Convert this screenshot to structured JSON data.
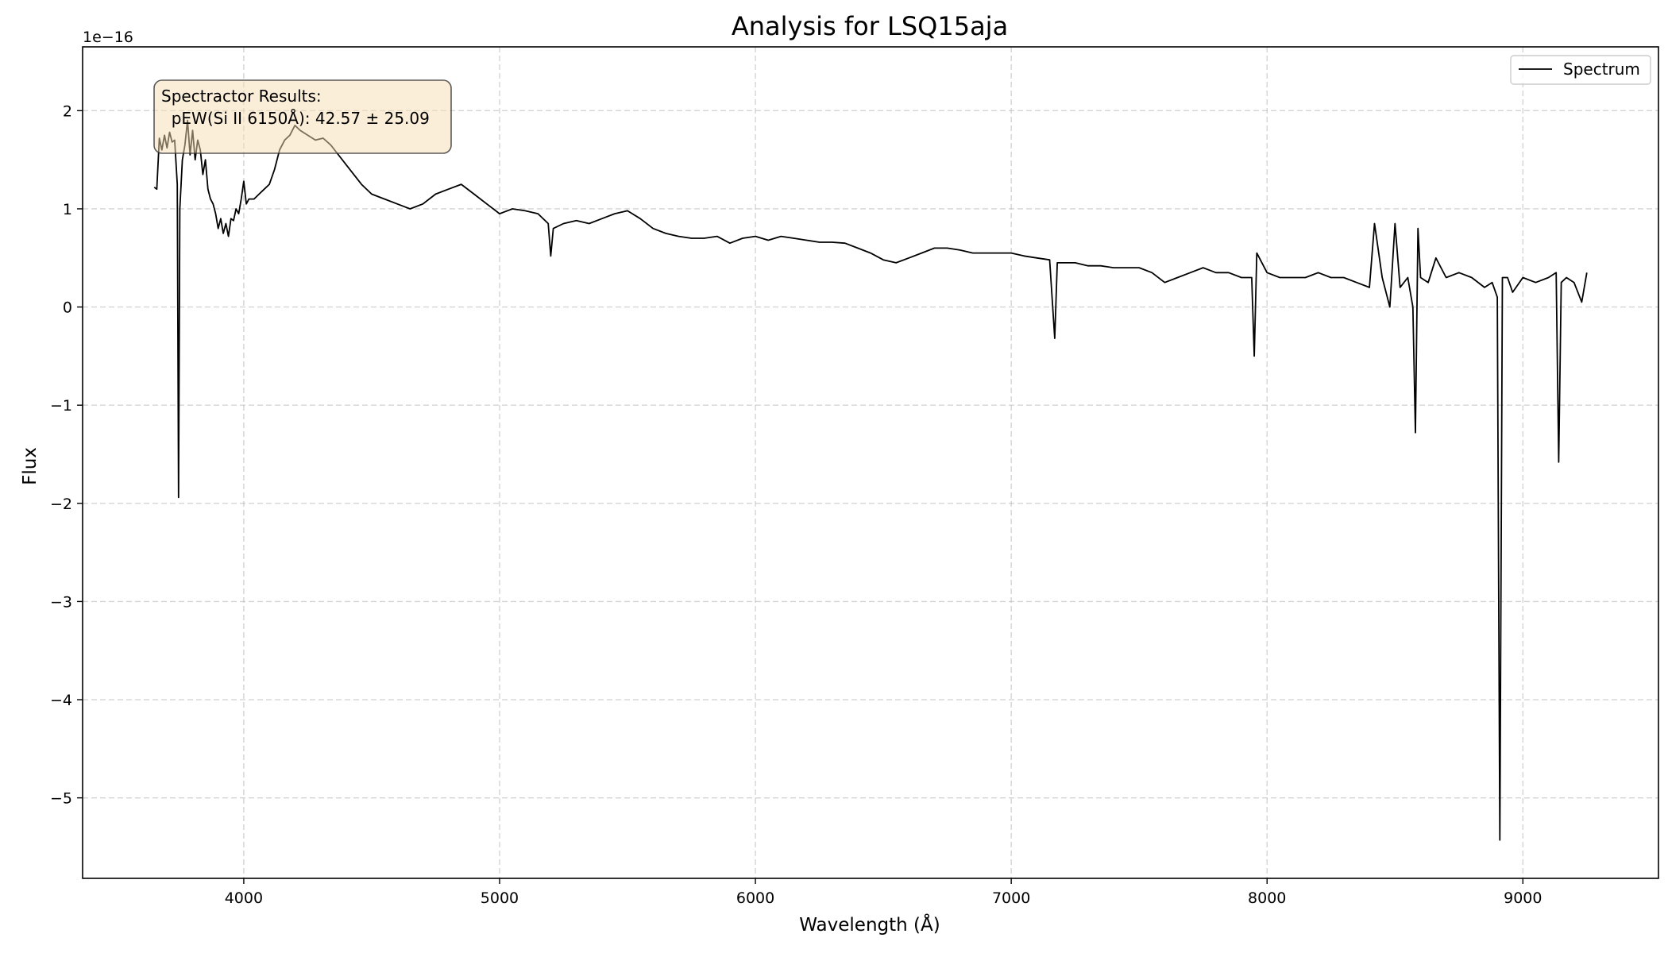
{
  "chart_data": {
    "type": "line",
    "title": "Analysis for LSQ15aja",
    "xlabel": "Wavelength (Å)",
    "ylabel": "Flux",
    "y_offset_label": "1e−16",
    "xlim": [
      3370,
      9530
    ],
    "ylim": [
      -5.82,
      2.65
    ],
    "xticks": [
      4000,
      5000,
      6000,
      7000,
      8000,
      9000
    ],
    "yticks": [
      -5,
      -4,
      -3,
      -2,
      -1,
      0,
      1,
      2
    ],
    "grid": true,
    "legend": {
      "position": "top-right",
      "entries": [
        "Spectrum"
      ]
    },
    "annotation": {
      "position": "top-left",
      "lines": [
        "Spectractor Results:",
        "  pEW(Si II 6150Å): 42.57 ± 25.09"
      ],
      "background": "#f5deb3"
    },
    "series": [
      {
        "name": "Spectrum",
        "color": "#000000",
        "x": [
          3650,
          3660,
          3670,
          3680,
          3690,
          3700,
          3710,
          3720,
          3730,
          3740,
          3745,
          3750,
          3760,
          3770,
          3780,
          3790,
          3800,
          3810,
          3820,
          3830,
          3840,
          3850,
          3860,
          3870,
          3880,
          3890,
          3900,
          3910,
          3920,
          3930,
          3940,
          3950,
          3960,
          3970,
          3980,
          3990,
          4000,
          4010,
          4020,
          4040,
          4060,
          4080,
          4100,
          4120,
          4140,
          4160,
          4180,
          4200,
          4220,
          4250,
          4280,
          4310,
          4340,
          4370,
          4400,
          4430,
          4460,
          4500,
          4550,
          4600,
          4650,
          4700,
          4750,
          4800,
          4850,
          4900,
          4950,
          5000,
          5050,
          5100,
          5150,
          5190,
          5200,
          5210,
          5250,
          5300,
          5350,
          5400,
          5450,
          5500,
          5550,
          5600,
          5650,
          5700,
          5750,
          5800,
          5850,
          5900,
          5950,
          6000,
          6050,
          6100,
          6150,
          6200,
          6250,
          6300,
          6350,
          6400,
          6450,
          6500,
          6550,
          6600,
          6650,
          6700,
          6750,
          6800,
          6850,
          6900,
          6950,
          7000,
          7050,
          7100,
          7150,
          7170,
          7180,
          7190,
          7250,
          7300,
          7350,
          7400,
          7450,
          7500,
          7550,
          7600,
          7650,
          7700,
          7750,
          7800,
          7850,
          7900,
          7940,
          7950,
          7960,
          8000,
          8050,
          8100,
          8150,
          8200,
          8250,
          8300,
          8350,
          8400,
          8420,
          8450,
          8480,
          8500,
          8520,
          8550,
          8570,
          8580,
          8590,
          8600,
          8630,
          8660,
          8700,
          8750,
          8800,
          8850,
          8880,
          8900,
          8910,
          8920,
          8940,
          8960,
          9000,
          9050,
          9100,
          9130,
          9140,
          9150,
          9170,
          9200,
          9230,
          9250
        ],
        "y": [
          1.22,
          1.2,
          1.72,
          1.6,
          1.75,
          1.62,
          1.78,
          1.68,
          1.7,
          1.25,
          -1.94,
          1.0,
          1.5,
          1.65,
          1.9,
          1.55,
          1.8,
          1.5,
          1.7,
          1.6,
          1.35,
          1.5,
          1.2,
          1.1,
          1.05,
          0.95,
          0.8,
          0.9,
          0.75,
          0.85,
          0.72,
          0.9,
          0.88,
          1.0,
          0.95,
          1.1,
          1.28,
          1.05,
          1.1,
          1.1,
          1.15,
          1.2,
          1.25,
          1.4,
          1.6,
          1.7,
          1.75,
          1.85,
          1.8,
          1.75,
          1.7,
          1.72,
          1.65,
          1.55,
          1.45,
          1.35,
          1.25,
          1.15,
          1.1,
          1.05,
          1.0,
          1.05,
          1.15,
          1.2,
          1.25,
          1.15,
          1.05,
          0.95,
          1.0,
          0.98,
          0.95,
          0.85,
          0.52,
          0.8,
          0.85,
          0.88,
          0.85,
          0.9,
          0.95,
          0.98,
          0.9,
          0.8,
          0.75,
          0.72,
          0.7,
          0.7,
          0.72,
          0.65,
          0.7,
          0.72,
          0.68,
          0.72,
          0.7,
          0.68,
          0.66,
          0.66,
          0.65,
          0.6,
          0.55,
          0.48,
          0.45,
          0.5,
          0.55,
          0.6,
          0.6,
          0.58,
          0.55,
          0.55,
          0.55,
          0.55,
          0.52,
          0.5,
          0.48,
          -0.32,
          0.45,
          0.45,
          0.45,
          0.42,
          0.42,
          0.4,
          0.4,
          0.4,
          0.35,
          0.25,
          0.3,
          0.35,
          0.4,
          0.35,
          0.35,
          0.3,
          0.3,
          -0.5,
          0.55,
          0.35,
          0.3,
          0.3,
          0.3,
          0.35,
          0.3,
          0.3,
          0.25,
          0.2,
          0.85,
          0.3,
          0.0,
          0.85,
          0.2,
          0.3,
          0.0,
          -1.28,
          0.8,
          0.3,
          0.25,
          0.5,
          0.3,
          0.35,
          0.3,
          0.2,
          0.25,
          0.1,
          -5.43,
          0.3,
          0.3,
          0.15,
          0.3,
          0.25,
          0.3,
          0.35,
          -1.58,
          0.25,
          0.3,
          0.25,
          0.05,
          0.35
        ]
      }
    ]
  }
}
